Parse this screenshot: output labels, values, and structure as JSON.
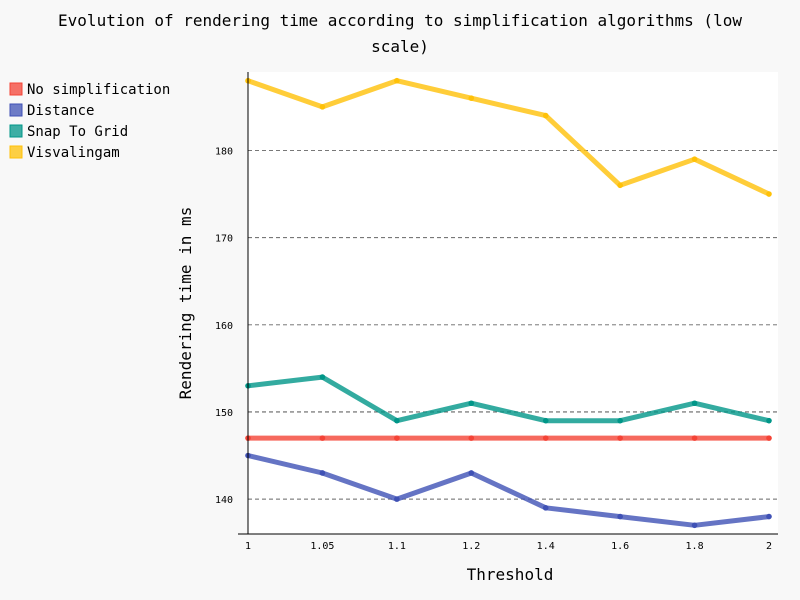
{
  "chart_data": {
    "type": "line",
    "title_line1": "Evolution of rendering time according to simplification algorithms (low",
    "title_line2": "scale)",
    "xlabel": "Threshold",
    "ylabel": "Rendering time in ms",
    "categories": [
      "1",
      "1.05",
      "1.1",
      "1.2",
      "1.4",
      "1.6",
      "1.8",
      "2"
    ],
    "y_ticks": [
      140,
      150,
      160,
      170,
      180
    ],
    "ylim": [
      136,
      189
    ],
    "grid": "horizontal dashed",
    "legend_position": "top-left",
    "series": [
      {
        "name": "No simplification",
        "color": "#F44336",
        "values": [
          147,
          147,
          147,
          147,
          147,
          147,
          147,
          147
        ]
      },
      {
        "name": "Distance",
        "color": "#3F51B5",
        "values": [
          145,
          143,
          140,
          143,
          139,
          138,
          137,
          138
        ]
      },
      {
        "name": "Snap To Grid",
        "color": "#009688",
        "values": [
          153,
          154,
          149,
          151,
          149,
          149,
          151,
          149
        ]
      },
      {
        "name": "Visvalingam",
        "color": "#FFC107",
        "values": [
          188,
          185,
          188,
          186,
          184,
          176,
          179,
          175
        ]
      }
    ]
  }
}
